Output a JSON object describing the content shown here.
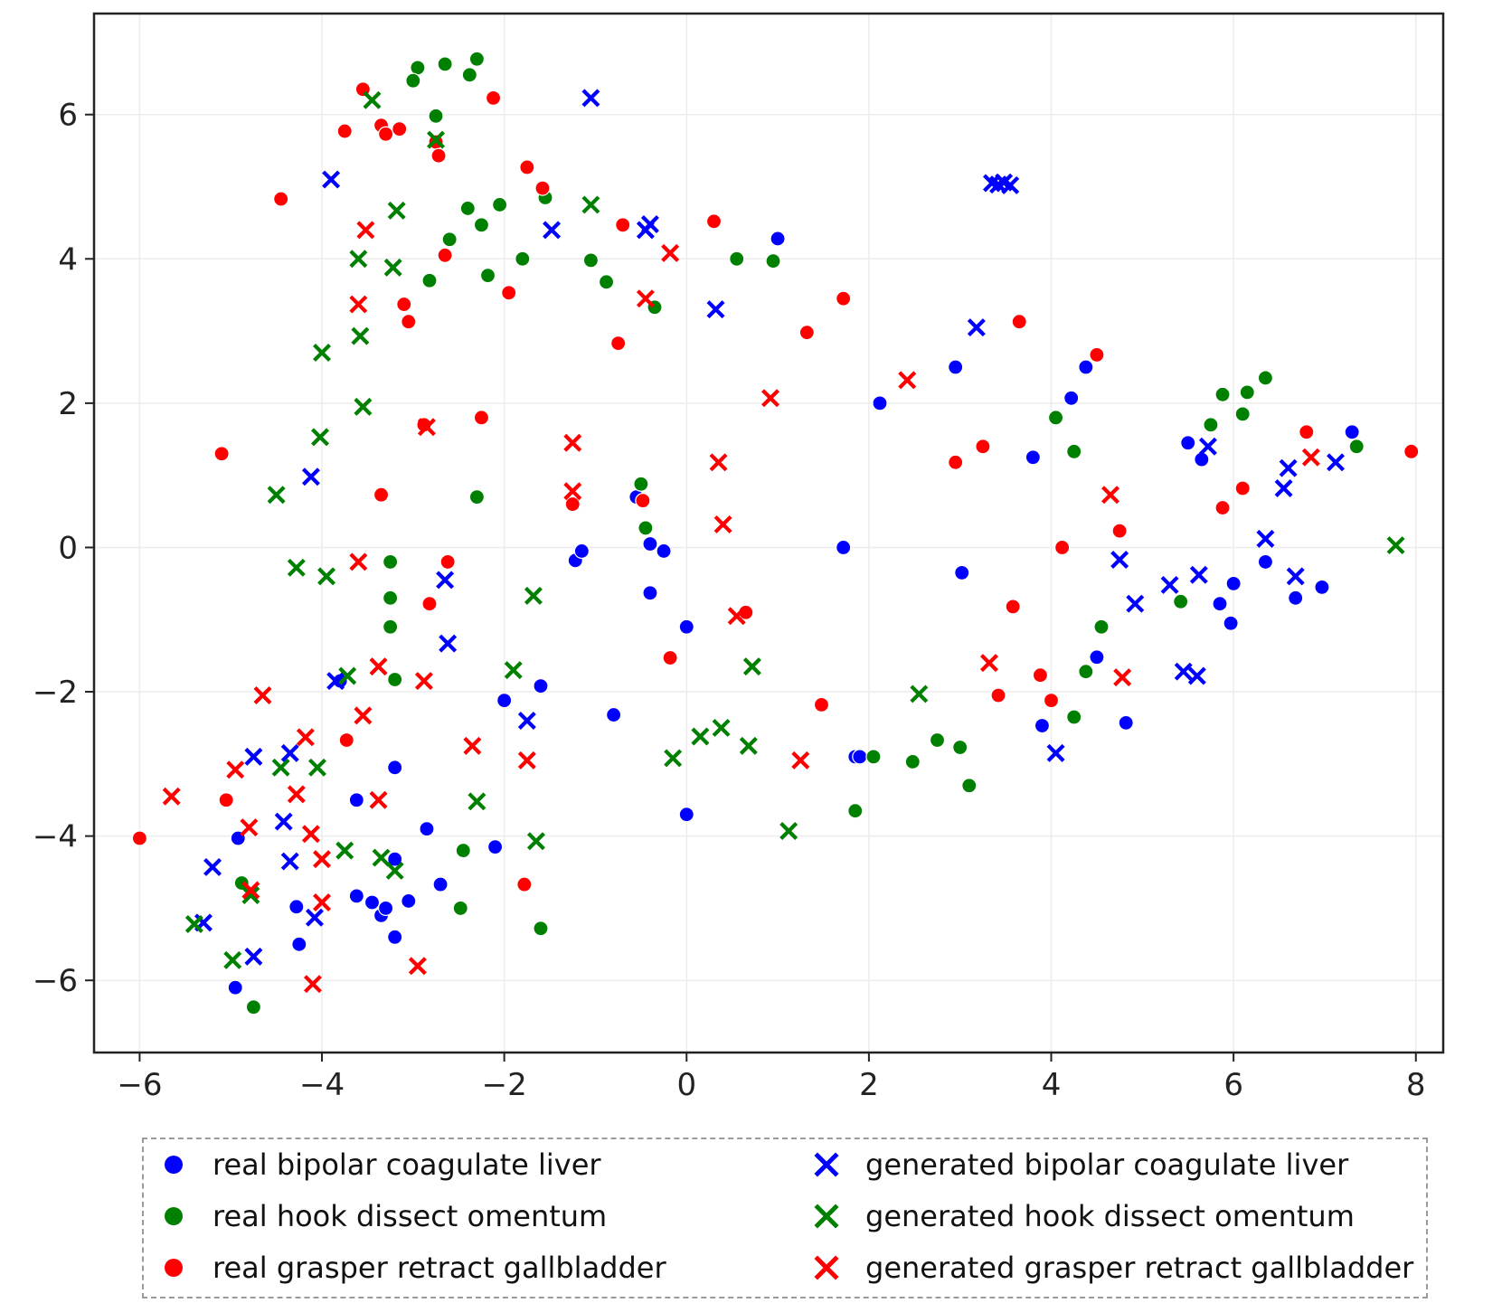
{
  "chart_data": {
    "type": "scatter",
    "title": "",
    "xlabel": "",
    "ylabel": "",
    "xlim": [
      -6.5,
      8.3
    ],
    "ylim": [
      -7.0,
      7.4
    ],
    "xticks": [
      -6,
      -4,
      -2,
      0,
      2,
      4,
      6,
      8
    ],
    "yticks": [
      -6,
      -4,
      -2,
      0,
      2,
      4,
      6
    ],
    "xtick_labels": [
      "−6",
      "−4",
      "−2",
      "0",
      "2",
      "4",
      "6",
      "8"
    ],
    "ytick_labels": [
      "−6",
      "−4",
      "−2",
      "0",
      "2",
      "4",
      "6"
    ],
    "grid": true,
    "legend_position": "bottom",
    "series": [
      {
        "name": "real bipolar coagulate liver",
        "marker": "circle",
        "color": "#0000ff",
        "points": [
          [
            1.0,
            4.28
          ],
          [
            2.95,
            2.5
          ],
          [
            4.38,
            2.5
          ],
          [
            4.22,
            2.07
          ],
          [
            2.12,
            2.0
          ],
          [
            3.8,
            1.25
          ],
          [
            5.5,
            1.45
          ],
          [
            5.65,
            1.22
          ],
          [
            7.3,
            1.6
          ],
          [
            -0.55,
            0.7
          ],
          [
            -0.4,
            0.05
          ],
          [
            -0.25,
            -0.05
          ],
          [
            -1.22,
            -0.18
          ],
          [
            -1.15,
            -0.05
          ],
          [
            1.72,
            0.0
          ],
          [
            3.02,
            -0.35
          ],
          [
            -0.4,
            -0.63
          ],
          [
            0.0,
            -1.1
          ],
          [
            5.85,
            -0.78
          ],
          [
            5.97,
            -1.05
          ],
          [
            6.0,
            -0.5
          ],
          [
            6.35,
            -0.2
          ],
          [
            6.68,
            -0.7
          ],
          [
            6.97,
            -0.55
          ],
          [
            4.5,
            -1.52
          ],
          [
            -1.6,
            -1.92
          ],
          [
            -2.0,
            -2.12
          ],
          [
            -0.8,
            -2.32
          ],
          [
            -3.8,
            -1.85
          ],
          [
            1.85,
            -2.9
          ],
          [
            1.9,
            -2.9
          ],
          [
            3.9,
            -2.47
          ],
          [
            4.82,
            -2.43
          ],
          [
            0.0,
            -3.7
          ],
          [
            -3.2,
            -3.05
          ],
          [
            -3.62,
            -3.5
          ],
          [
            -2.85,
            -3.9
          ],
          [
            -2.1,
            -4.15
          ],
          [
            -3.2,
            -4.32
          ],
          [
            -4.92,
            -4.03
          ],
          [
            -4.28,
            -4.98
          ],
          [
            -3.62,
            -4.83
          ],
          [
            -3.45,
            -4.92
          ],
          [
            -3.35,
            -5.1
          ],
          [
            -3.3,
            -5.0
          ],
          [
            -3.05,
            -4.9
          ],
          [
            -2.7,
            -4.67
          ],
          [
            -4.25,
            -5.5
          ],
          [
            -3.2,
            -5.4
          ],
          [
            -4.95,
            -6.1
          ]
        ]
      },
      {
        "name": "real hook dissect omentum",
        "marker": "circle",
        "color": "#008000",
        "points": [
          [
            -2.95,
            6.65
          ],
          [
            -2.65,
            6.7
          ],
          [
            -2.3,
            6.77
          ],
          [
            -2.38,
            6.55
          ],
          [
            -3.0,
            6.47
          ],
          [
            -2.75,
            5.98
          ],
          [
            -1.55,
            4.85
          ],
          [
            -2.05,
            4.75
          ],
          [
            -2.4,
            4.7
          ],
          [
            -2.25,
            4.47
          ],
          [
            -2.6,
            4.27
          ],
          [
            -1.8,
            4.0
          ],
          [
            -1.05,
            3.98
          ],
          [
            0.55,
            4.0
          ],
          [
            0.95,
            3.97
          ],
          [
            -2.18,
            3.77
          ],
          [
            -0.88,
            3.68
          ],
          [
            -2.82,
            3.7
          ],
          [
            -0.35,
            3.33
          ],
          [
            6.35,
            2.35
          ],
          [
            5.88,
            2.12
          ],
          [
            6.15,
            2.15
          ],
          [
            6.1,
            1.85
          ],
          [
            5.75,
            1.7
          ],
          [
            4.05,
            1.8
          ],
          [
            4.25,
            1.33
          ],
          [
            7.35,
            1.4
          ],
          [
            -0.5,
            0.88
          ],
          [
            -2.3,
            0.7
          ],
          [
            -0.45,
            0.27
          ],
          [
            -3.25,
            -0.2
          ],
          [
            -3.25,
            -0.7
          ],
          [
            -3.25,
            -1.1
          ],
          [
            5.42,
            -0.75
          ],
          [
            4.55,
            -1.1
          ],
          [
            4.38,
            -1.72
          ],
          [
            -3.2,
            -1.83
          ],
          [
            4.25,
            -2.35
          ],
          [
            2.75,
            -2.67
          ],
          [
            2.48,
            -2.97
          ],
          [
            2.05,
            -2.9
          ],
          [
            3.0,
            -2.77
          ],
          [
            3.1,
            -3.3
          ],
          [
            1.85,
            -3.65
          ],
          [
            -2.45,
            -4.2
          ],
          [
            -2.48,
            -5.0
          ],
          [
            -1.6,
            -5.28
          ],
          [
            -4.88,
            -4.65
          ],
          [
            -4.75,
            -6.37
          ]
        ]
      },
      {
        "name": "real grasper retract gallbladder",
        "marker": "circle",
        "color": "#ff0000",
        "points": [
          [
            -3.55,
            6.35
          ],
          [
            -2.12,
            6.23
          ],
          [
            -3.75,
            5.77
          ],
          [
            -3.35,
            5.85
          ],
          [
            -3.3,
            5.73
          ],
          [
            -3.15,
            5.8
          ],
          [
            -2.75,
            5.62
          ],
          [
            -2.72,
            5.43
          ],
          [
            -1.75,
            5.27
          ],
          [
            -1.58,
            4.98
          ],
          [
            -4.45,
            4.83
          ],
          [
            0.3,
            4.52
          ],
          [
            -0.7,
            4.47
          ],
          [
            -2.65,
            4.05
          ],
          [
            -1.95,
            3.53
          ],
          [
            1.72,
            3.45
          ],
          [
            -3.1,
            3.37
          ],
          [
            -3.05,
            3.13
          ],
          [
            3.65,
            3.13
          ],
          [
            1.32,
            2.98
          ],
          [
            -0.75,
            2.83
          ],
          [
            4.5,
            2.67
          ],
          [
            -2.88,
            1.7
          ],
          [
            -2.25,
            1.8
          ],
          [
            -5.1,
            1.3
          ],
          [
            6.8,
            1.6
          ],
          [
            3.25,
            1.4
          ],
          [
            2.95,
            1.18
          ],
          [
            7.95,
            1.33
          ],
          [
            -3.35,
            0.73
          ],
          [
            -1.25,
            0.6
          ],
          [
            -0.48,
            0.65
          ],
          [
            6.1,
            0.82
          ],
          [
            5.88,
            0.55
          ],
          [
            4.75,
            0.23
          ],
          [
            4.12,
            0.0
          ],
          [
            -2.62,
            -0.2
          ],
          [
            -2.82,
            -0.78
          ],
          [
            3.58,
            -0.82
          ],
          [
            0.65,
            -0.9
          ],
          [
            -0.18,
            -1.53
          ],
          [
            3.88,
            -1.77
          ],
          [
            4.0,
            -2.12
          ],
          [
            3.42,
            -2.05
          ],
          [
            1.48,
            -2.18
          ],
          [
            -3.73,
            -2.67
          ],
          [
            -5.05,
            -3.5
          ],
          [
            -6.0,
            -4.03
          ],
          [
            -1.78,
            -4.67
          ]
        ]
      },
      {
        "name": "generated bipolar coagulate liver",
        "marker": "x",
        "color": "#0000ff",
        "points": [
          [
            -1.05,
            6.23
          ],
          [
            -3.9,
            5.1
          ],
          [
            3.35,
            5.05
          ],
          [
            3.42,
            5.03
          ],
          [
            3.48,
            5.06
          ],
          [
            3.55,
            5.02
          ],
          [
            -0.4,
            4.48
          ],
          [
            -0.45,
            4.4
          ],
          [
            -1.48,
            4.4
          ],
          [
            0.32,
            3.3
          ],
          [
            3.18,
            3.05
          ],
          [
            5.72,
            1.4
          ],
          [
            6.6,
            1.1
          ],
          [
            7.12,
            1.18
          ],
          [
            6.55,
            0.82
          ],
          [
            -4.12,
            0.98
          ],
          [
            6.35,
            0.12
          ],
          [
            4.75,
            -0.17
          ],
          [
            5.3,
            -0.52
          ],
          [
            5.62,
            -0.38
          ],
          [
            6.68,
            -0.4
          ],
          [
            4.92,
            -0.78
          ],
          [
            -2.65,
            -0.45
          ],
          [
            -2.62,
            -1.33
          ],
          [
            5.45,
            -1.72
          ],
          [
            5.6,
            -1.78
          ],
          [
            -3.85,
            -1.85
          ],
          [
            -1.75,
            -2.4
          ],
          [
            4.05,
            -2.85
          ],
          [
            -4.75,
            -2.9
          ],
          [
            -4.35,
            -2.85
          ],
          [
            -4.42,
            -3.8
          ],
          [
            -4.35,
            -4.35
          ],
          [
            -5.2,
            -4.43
          ],
          [
            -4.08,
            -5.13
          ],
          [
            -5.3,
            -5.2
          ],
          [
            -4.75,
            -5.67
          ]
        ]
      },
      {
        "name": "generated hook dissect omentum",
        "marker": "x",
        "color": "#008000",
        "points": [
          [
            -3.45,
            6.2
          ],
          [
            -2.75,
            5.65
          ],
          [
            -3.18,
            4.67
          ],
          [
            -1.05,
            4.75
          ],
          [
            -3.6,
            4.0
          ],
          [
            -3.22,
            3.88
          ],
          [
            -3.58,
            2.93
          ],
          [
            -4.0,
            2.7
          ],
          [
            -3.55,
            1.95
          ],
          [
            -4.02,
            1.53
          ],
          [
            -4.5,
            0.73
          ],
          [
            7.78,
            0.03
          ],
          [
            -4.28,
            -0.28
          ],
          [
            -3.95,
            -0.4
          ],
          [
            -1.68,
            -0.67
          ],
          [
            -1.9,
            -1.7
          ],
          [
            0.72,
            -1.65
          ],
          [
            -3.72,
            -1.78
          ],
          [
            2.55,
            -2.03
          ],
          [
            0.15,
            -2.62
          ],
          [
            0.38,
            -2.5
          ],
          [
            -0.15,
            -2.92
          ],
          [
            0.68,
            -2.75
          ],
          [
            -2.3,
            -3.52
          ],
          [
            1.12,
            -3.93
          ],
          [
            -1.65,
            -4.07
          ],
          [
            -3.75,
            -4.2
          ],
          [
            -3.35,
            -4.3
          ],
          [
            -3.2,
            -4.48
          ],
          [
            -4.45,
            -3.05
          ],
          [
            -4.05,
            -3.05
          ],
          [
            -4.78,
            -4.82
          ],
          [
            -5.4,
            -5.22
          ],
          [
            -4.98,
            -5.72
          ]
        ]
      },
      {
        "name": "generated grasper retract gallbladder",
        "marker": "x",
        "color": "#ff0000",
        "points": [
          [
            -3.52,
            4.4
          ],
          [
            -0.18,
            4.08
          ],
          [
            -3.6,
            3.37
          ],
          [
            -0.45,
            3.45
          ],
          [
            0.92,
            2.07
          ],
          [
            2.42,
            2.32
          ],
          [
            -2.85,
            1.67
          ],
          [
            -1.25,
            1.45
          ],
          [
            0.35,
            1.18
          ],
          [
            6.85,
            1.25
          ],
          [
            4.65,
            0.73
          ],
          [
            -1.25,
            0.78
          ],
          [
            0.4,
            0.32
          ],
          [
            -3.6,
            -0.2
          ],
          [
            0.55,
            -0.95
          ],
          [
            3.32,
            -1.6
          ],
          [
            4.78,
            -1.8
          ],
          [
            -3.38,
            -1.65
          ],
          [
            -2.88,
            -1.85
          ],
          [
            -3.55,
            -2.33
          ],
          [
            -4.65,
            -2.05
          ],
          [
            -4.18,
            -2.63
          ],
          [
            -2.35,
            -2.75
          ],
          [
            -1.75,
            -2.95
          ],
          [
            1.25,
            -2.95
          ],
          [
            -4.95,
            -3.08
          ],
          [
            -4.28,
            -3.42
          ],
          [
            -3.38,
            -3.5
          ],
          [
            -5.65,
            -3.45
          ],
          [
            -4.8,
            -3.88
          ],
          [
            -4.12,
            -3.97
          ],
          [
            -4.0,
            -4.32
          ],
          [
            -4.78,
            -4.75
          ],
          [
            -4.0,
            -4.92
          ],
          [
            -2.95,
            -5.8
          ],
          [
            -4.1,
            -6.05
          ]
        ]
      }
    ]
  }
}
